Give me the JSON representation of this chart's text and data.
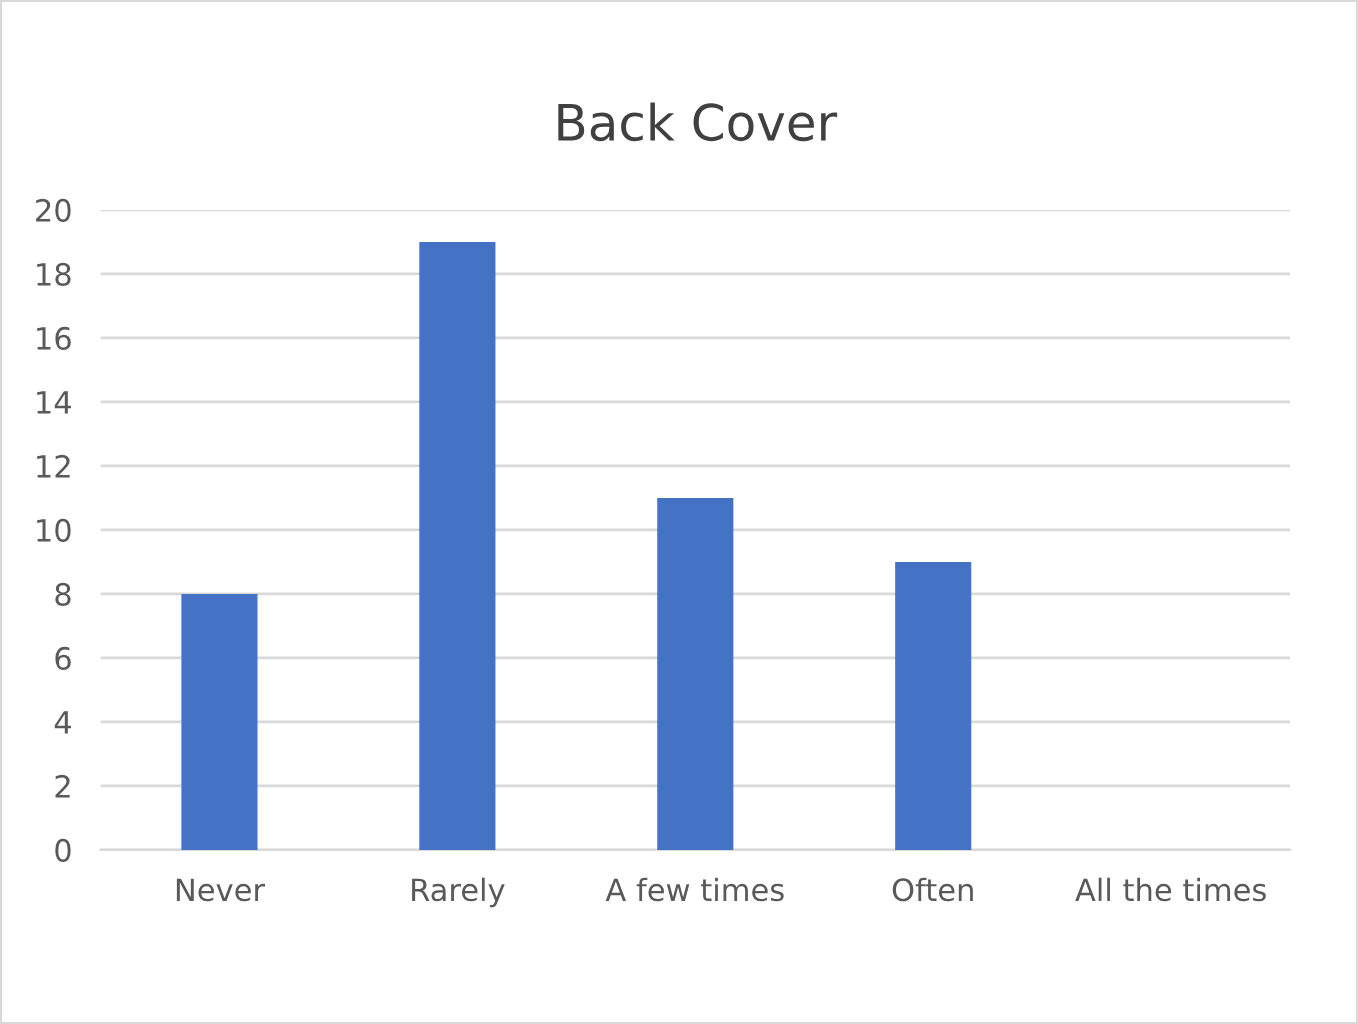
{
  "chart_data": {
    "type": "bar",
    "title": "Back Cover",
    "categories": [
      "Never",
      "Rarely",
      "A few times",
      "Often",
      "All the times"
    ],
    "values": [
      8,
      19,
      11,
      9,
      0
    ],
    "color": "#4472c4",
    "ylim": [
      0,
      20
    ],
    "yticks": [
      0,
      2,
      4,
      6,
      8,
      10,
      12,
      14,
      16,
      18,
      20
    ],
    "grid": "y"
  }
}
